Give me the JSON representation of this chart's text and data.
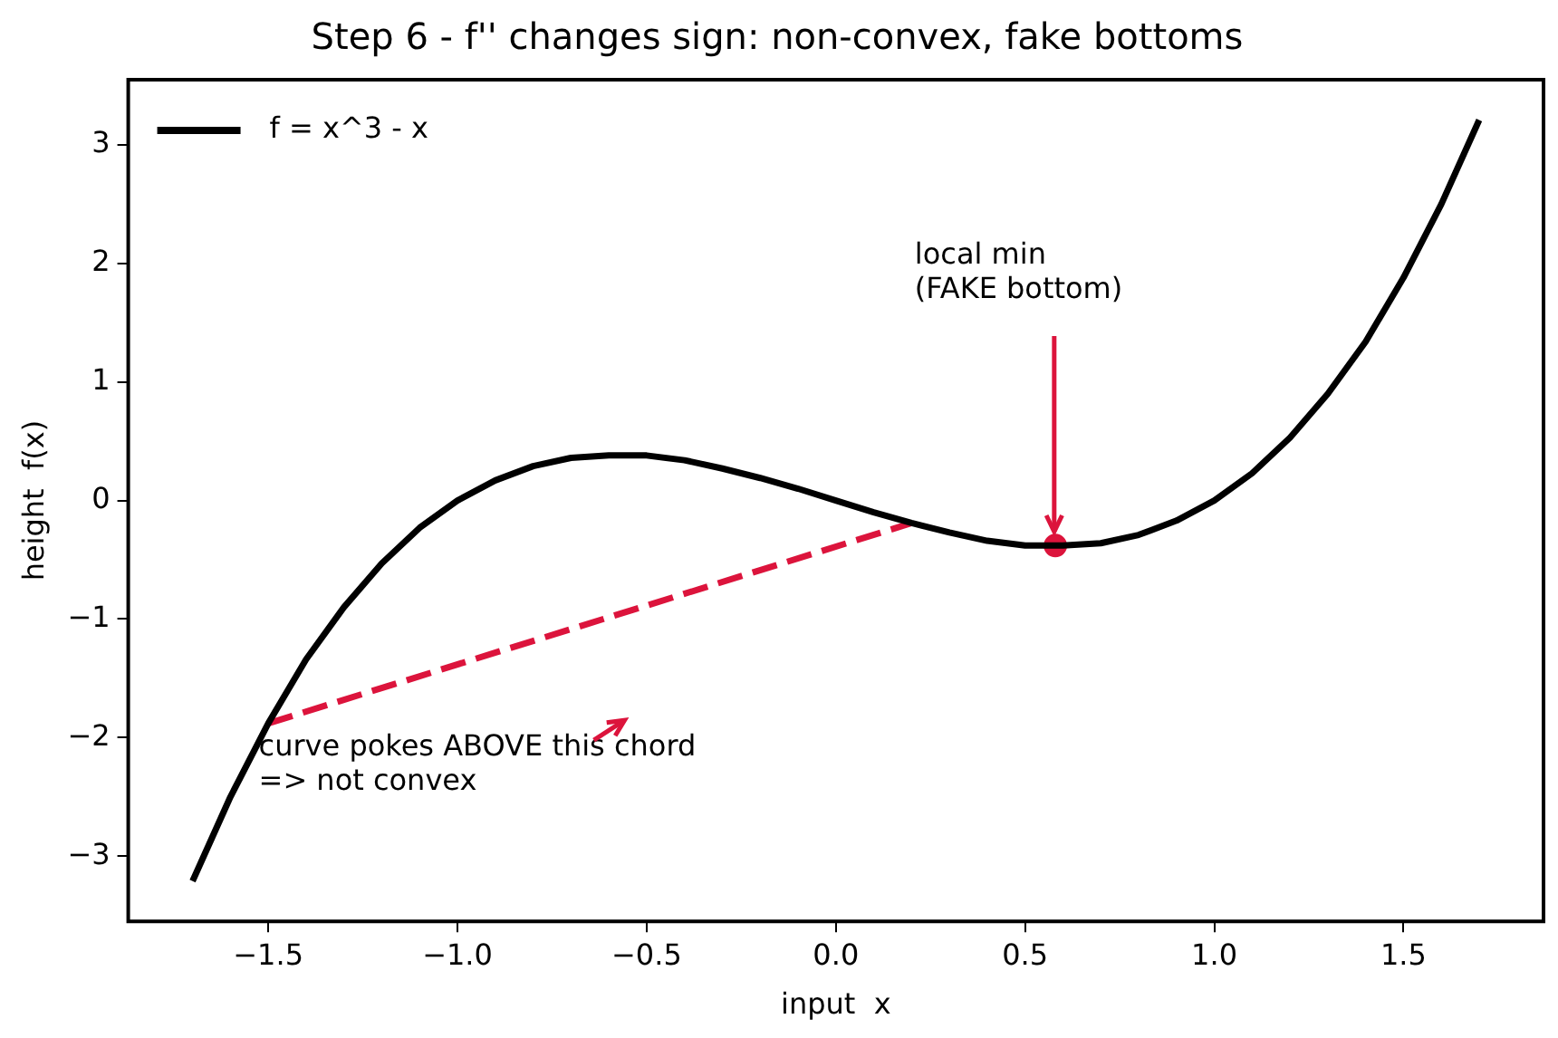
{
  "chart_data": {
    "type": "line",
    "title": "Step 6 - f'' changes sign: non-convex, fake bottoms",
    "xlabel": "input  x",
    "ylabel": "height  f(x)",
    "xlim": [
      -1.87,
      1.87
    ],
    "ylim": [
      -3.55,
      3.55
    ],
    "xticks": [
      {
        "value": -1.5,
        "label": "−1.5"
      },
      {
        "value": -1,
        "label": "−1.0"
      },
      {
        "value": -0.5,
        "label": "−0.5"
      },
      {
        "value": 0,
        "label": "0.0"
      },
      {
        "value": 0.5,
        "label": "0.5"
      },
      {
        "value": 1,
        "label": "1.0"
      },
      {
        "value": 1.5,
        "label": "1.5"
      }
    ],
    "yticks": [
      {
        "value": -3,
        "label": "−3"
      },
      {
        "value": -2,
        "label": "−2"
      },
      {
        "value": -1,
        "label": "−1"
      },
      {
        "value": 0,
        "label": "0"
      },
      {
        "value": 1,
        "label": "1"
      },
      {
        "value": 2,
        "label": "2"
      },
      {
        "value": 3,
        "label": "3"
      }
    ],
    "grid": false,
    "legend": "top left",
    "annotations": [
      {
        "text": "local min\n(FAKE bottom)",
        "x": 0.577,
        "y": -0.385
      },
      "curve pokes ABOVE this chord\n=> not convex"
    ],
    "series": [
      {
        "name": "f = x^3 - x",
        "color": "#000000",
        "x": [
          -1.7,
          -1.6,
          -1.5,
          -1.4,
          -1.3,
          -1.2,
          -1.1,
          -1.0,
          -0.9,
          -0.8,
          -0.7,
          -0.6,
          -0.5,
          -0.4,
          -0.3,
          -0.2,
          -0.1,
          0,
          0.1,
          0.2,
          0.3,
          0.4,
          0.5,
          0.6,
          0.7,
          0.8,
          0.9,
          1.0,
          1.1,
          1.2,
          1.3,
          1.4,
          1.5,
          1.6,
          1.7
        ],
        "values": [
          -3.21,
          -2.5,
          -1.88,
          -1.34,
          -0.9,
          -0.53,
          -0.23,
          0,
          0.17,
          0.29,
          0.36,
          0.38,
          0.38,
          0.34,
          0.27,
          0.19,
          0.1,
          0,
          -0.1,
          -0.19,
          -0.27,
          -0.34,
          -0.38,
          -0.38,
          -0.36,
          -0.29,
          -0.17,
          0,
          0.23,
          0.53,
          0.9,
          1.34,
          1.88,
          2.5,
          3.21
        ]
      },
      {
        "color": "#dc143c",
        "type": "line",
        "line_style": "dashed",
        "x": [
          -1.5,
          0.2
        ],
        "values": [
          -1.88,
          -0.19
        ]
      },
      {
        "color": "#dc143c",
        "type": "scatter",
        "marker": "circle",
        "x": [
          0.58
        ],
        "values": [
          -0.38
        ]
      }
    ]
  }
}
